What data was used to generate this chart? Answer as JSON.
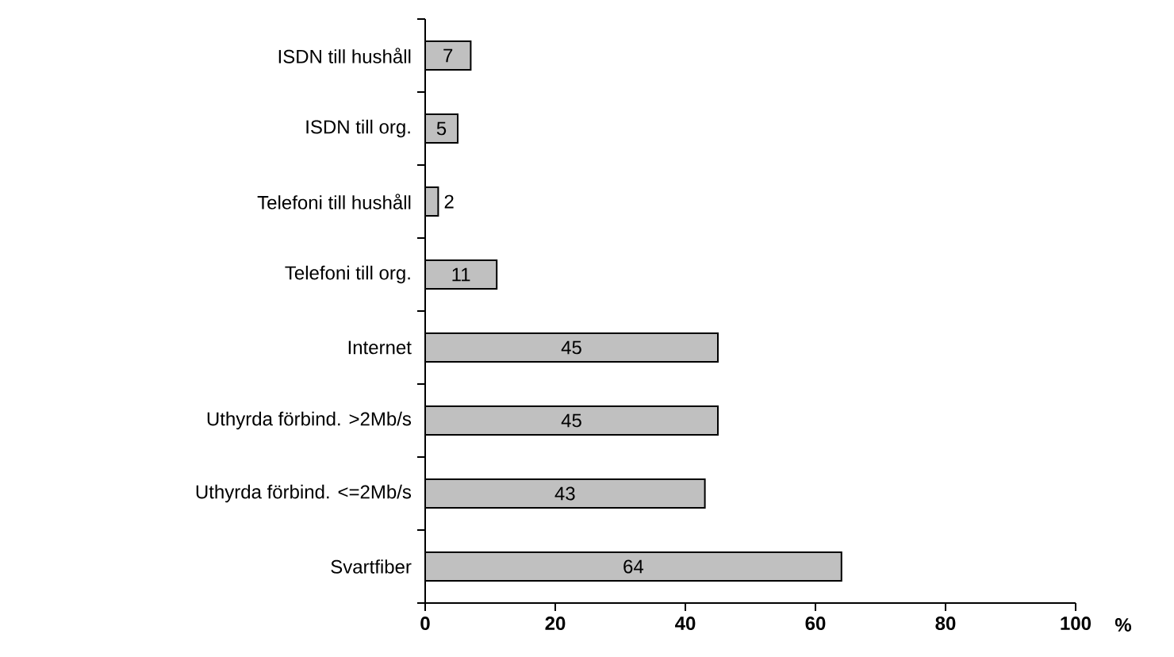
{
  "chart_data": {
    "type": "bar",
    "orientation": "horizontal",
    "categories": [
      "ISDN till hushåll",
      "ISDN till org.",
      "Telefoni till hushåll",
      "Telefoni till org.",
      "Internet",
      "Uthyrda förbind. >2Mb/s",
      "Uthyrda förbind. <=2Mb/s",
      "Svartfiber"
    ],
    "values": [
      7,
      5,
      2,
      11,
      45,
      45,
      43,
      64
    ],
    "color": "#c0c0c0",
    "xlabel": "%",
    "xlim": [
      0,
      100
    ],
    "xticks": [
      0,
      20,
      40,
      60,
      80,
      100
    ],
    "data_labels": true
  }
}
